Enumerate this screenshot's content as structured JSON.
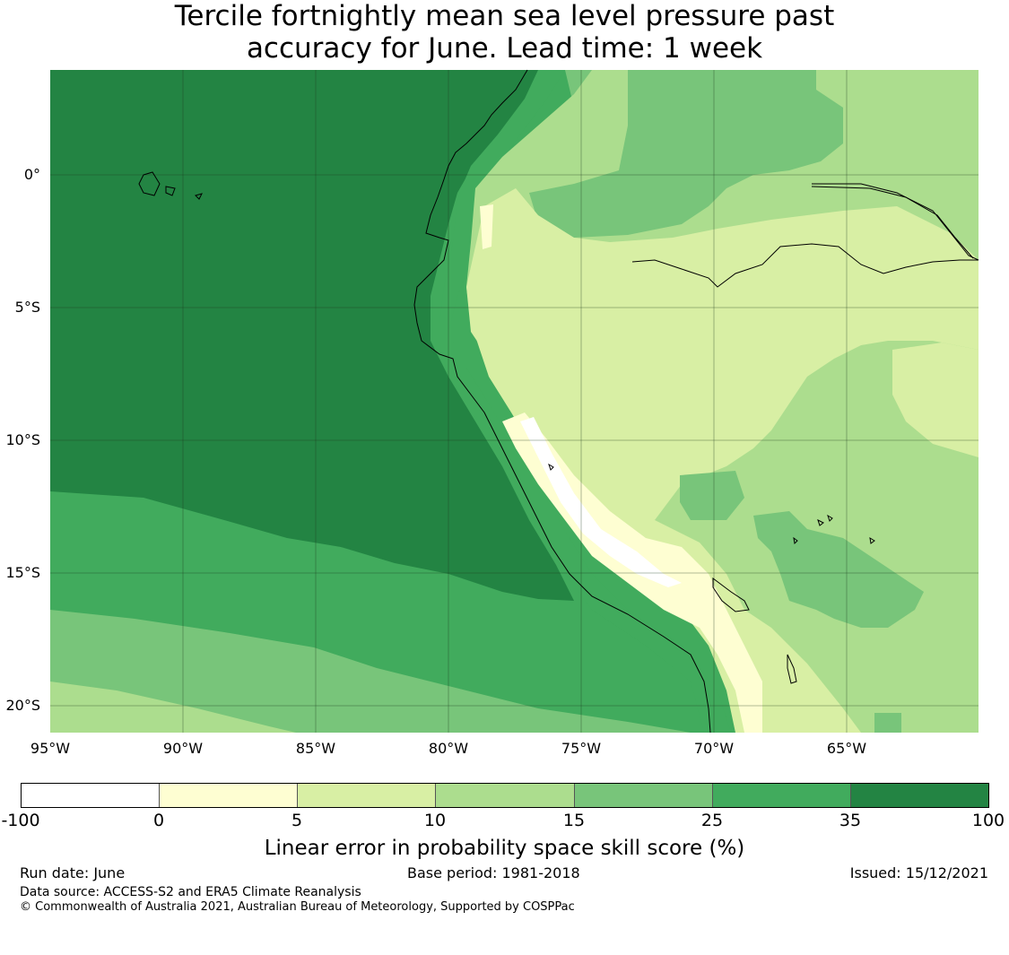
{
  "title_line1": "Tercile fortnightly mean sea level pressure past",
  "title_line2": "accuracy for June. Lead time: 1 week",
  "lat_labels": [
    "0°",
    "5°S",
    "10°S",
    "15°S",
    "20°S"
  ],
  "lon_labels": [
    "95°W",
    "90°W",
    "85°W",
    "80°W",
    "75°W",
    "70°W",
    "65°W"
  ],
  "colorbar": {
    "ticks": [
      "-100",
      "0",
      "5",
      "10",
      "15",
      "25",
      "35",
      "100"
    ],
    "colors": [
      "#ffffff",
      "#fefed2",
      "#d8efa4",
      "#acdd8e",
      "#78c57a",
      "#41ab5d",
      "#238443"
    ],
    "label": "Linear error in probability space skill score (%)"
  },
  "footer": {
    "run_date": "Run date: June",
    "base_period": "Base period: 1981-2018",
    "issued": "Issued: 15/12/2021",
    "data_source": "Data source: ACCESS-S2 and ERA5 Climate Reanalysis",
    "copyright": "© Commonwealth of Australia 2021, Australian Bureau of Meteorology, Supported by COSPPac"
  }
}
